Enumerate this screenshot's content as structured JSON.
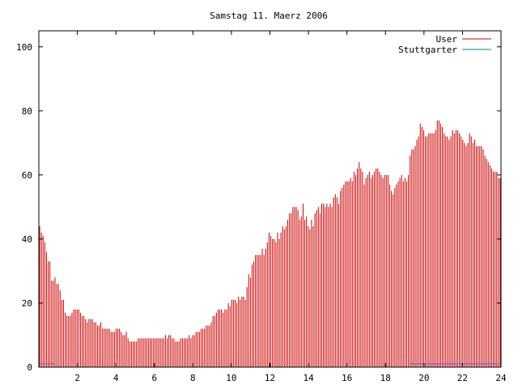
{
  "chart_data": {
    "type": "bar",
    "title": "Samstag 11. Maerz 2006",
    "xlim": [
      0,
      24
    ],
    "ylim": [
      0,
      105
    ],
    "xticks": [
      2,
      4,
      6,
      8,
      10,
      12,
      14,
      16,
      18,
      20,
      22,
      24
    ],
    "yticks": [
      0,
      20,
      40,
      60,
      80,
      100
    ],
    "grid": false,
    "legend_position": "top-right",
    "series": [
      {
        "name": "User",
        "color": "#cc0000",
        "values": [
          44,
          42,
          41,
          39,
          36,
          33,
          33,
          27,
          27,
          28,
          26,
          26,
          24,
          21,
          21,
          17,
          16,
          16,
          16,
          17,
          18,
          18,
          18,
          18,
          17,
          16,
          16,
          15,
          14,
          15,
          15,
          15,
          14,
          14,
          13,
          13,
          14,
          12,
          12,
          12,
          12,
          12,
          11,
          11,
          11,
          12,
          12,
          12,
          11,
          10,
          10,
          11,
          9,
          8,
          8,
          8,
          8,
          8,
          9,
          9,
          9,
          9,
          9,
          9,
          9,
          9,
          9,
          9,
          9,
          9,
          9,
          9,
          9,
          9,
          10,
          9,
          10,
          10,
          9,
          9,
          8,
          8,
          8,
          9,
          9,
          9,
          9,
          9,
          10,
          9,
          10,
          10,
          11,
          11,
          11,
          12,
          12,
          12,
          13,
          13,
          13,
          14,
          16,
          16,
          17,
          18,
          18,
          18,
          17,
          18,
          18,
          20,
          19,
          21,
          21,
          21,
          20,
          22,
          21,
          22,
          22,
          21,
          25,
          29,
          28,
          32,
          33,
          35,
          35,
          35,
          35,
          37,
          35,
          37,
          39,
          42,
          41,
          40,
          40,
          39,
          42,
          40,
          42,
          44,
          43,
          44,
          46,
          48,
          48,
          50,
          50,
          50,
          49,
          46,
          47,
          51,
          46,
          47,
          44,
          43,
          46,
          44,
          48,
          49,
          50,
          48,
          51,
          51,
          50,
          51,
          50,
          51,
          50,
          53,
          54,
          53,
          51,
          55,
          56,
          57,
          58,
          58,
          58,
          59,
          58,
          61,
          60,
          62,
          64,
          62,
          61,
          57,
          59,
          60,
          61,
          59,
          60,
          61,
          62,
          62,
          61,
          60,
          59,
          60,
          60,
          60,
          57,
          55,
          54,
          56,
          57,
          58,
          59,
          60,
          58,
          59,
          58,
          60,
          66,
          68,
          68,
          69,
          71,
          72,
          76,
          75,
          74,
          72,
          72,
          73,
          73,
          73,
          73,
          74,
          77,
          77,
          76,
          75,
          73,
          72,
          72,
          71,
          72,
          74,
          73,
          74,
          74,
          73,
          72,
          71,
          70,
          69,
          70,
          73,
          72,
          70,
          71,
          69,
          69,
          69,
          69,
          68,
          66,
          65,
          64,
          63,
          62,
          61,
          61,
          61,
          59,
          59
        ],
        "highlight_values": [
          1,
          1,
          1,
          1,
          1,
          1,
          1,
          1,
          1
        ]
      },
      {
        "name": "Stuttgarter",
        "color": "#008b8b",
        "values": []
      }
    ]
  }
}
